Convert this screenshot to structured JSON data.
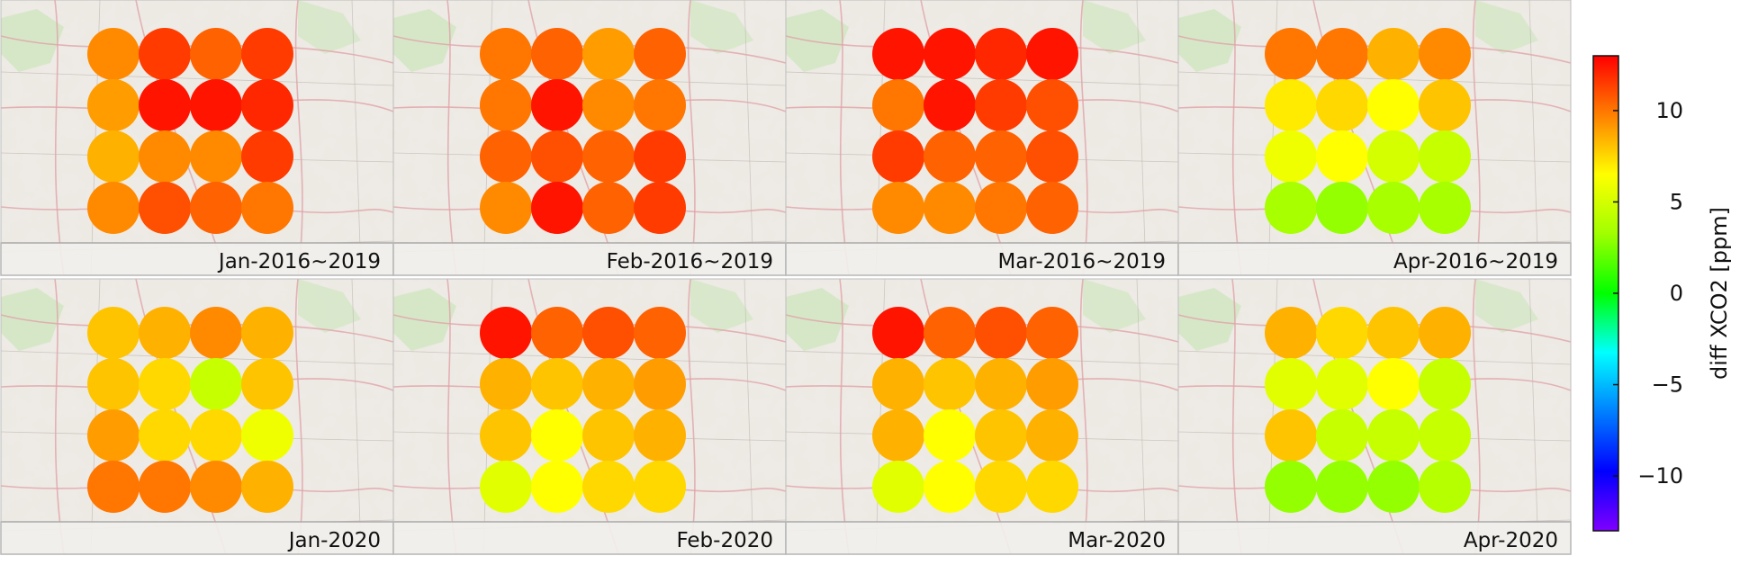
{
  "chart_data": {
    "type": "heatmap",
    "value_range": [
      -13,
      13
    ],
    "colorbar": {
      "label": "diff XCO2 [ppm]",
      "ticks": [
        -10,
        -5,
        0,
        5,
        10
      ],
      "tick_labels": [
        "−10",
        "−5",
        "0",
        "5",
        "10"
      ],
      "colormap": "jet"
    },
    "panels": [
      {
        "label": "Jan-2016~2019",
        "grid": [
          [
            9.5,
            11.5,
            10.5,
            11.5
          ],
          [
            9.0,
            12.5,
            12.5,
            12.0
          ],
          [
            8.5,
            9.5,
            9.5,
            11.5
          ],
          [
            9.5,
            11.0,
            10.5,
            10.0
          ]
        ]
      },
      {
        "label": "Feb-2016~2019",
        "grid": [
          [
            10.0,
            10.5,
            9.0,
            10.5
          ],
          [
            10.0,
            12.5,
            9.5,
            10.0
          ],
          [
            10.5,
            11.0,
            10.5,
            11.5
          ],
          [
            9.5,
            12.5,
            10.5,
            11.5
          ]
        ]
      },
      {
        "label": "Mar-2016~2019",
        "grid": [
          [
            12.5,
            12.5,
            12.0,
            12.5
          ],
          [
            10.0,
            12.5,
            11.5,
            11.0
          ],
          [
            11.5,
            10.5,
            10.5,
            11.0
          ],
          [
            9.5,
            9.5,
            10.0,
            10.5
          ]
        ]
      },
      {
        "label": "Apr-2016~2019",
        "grid": [
          [
            10.0,
            10.0,
            8.5,
            9.5
          ],
          [
            7.0,
            7.5,
            6.5,
            8.0
          ],
          [
            6.0,
            6.5,
            5.0,
            4.5
          ],
          [
            3.5,
            3.0,
            3.5,
            3.5
          ]
        ]
      },
      {
        "label": "Jan-2020",
        "grid": [
          [
            8.0,
            8.5,
            9.5,
            8.5
          ],
          [
            8.0,
            7.5,
            4.5,
            8.0
          ],
          [
            9.0,
            7.5,
            7.5,
            6.0
          ],
          [
            10.0,
            10.0,
            9.5,
            8.5
          ]
        ]
      },
      {
        "label": "Feb-2020",
        "grid": [
          [
            12.5,
            10.5,
            11.0,
            10.5
          ],
          [
            8.5,
            8.0,
            8.5,
            9.0
          ],
          [
            8.0,
            6.5,
            8.0,
            8.5
          ],
          [
            5.5,
            6.5,
            7.5,
            7.5
          ]
        ]
      },
      {
        "label": "Mar-2020",
        "grid": [
          [
            12.5,
            10.5,
            11.0,
            10.5
          ],
          [
            8.5,
            8.0,
            8.5,
            9.0
          ],
          [
            8.5,
            6.5,
            8.0,
            8.5
          ],
          [
            5.5,
            6.5,
            7.5,
            7.5
          ]
        ]
      },
      {
        "label": "Apr-2020",
        "grid": [
          [
            8.5,
            7.5,
            8.0,
            8.5
          ],
          [
            5.5,
            5.5,
            6.5,
            4.5
          ],
          [
            8.0,
            4.5,
            4.5,
            4.5
          ],
          [
            3.0,
            3.0,
            3.0,
            4.0
          ]
        ]
      }
    ]
  }
}
